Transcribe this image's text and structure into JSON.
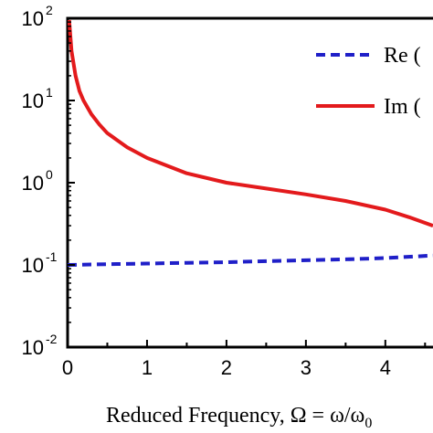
{
  "chart_data": {
    "type": "line",
    "xlabel": "Reduced Frequency, Ω = ω/ω0",
    "ylabel": "",
    "y_scale": "log",
    "xlim": [
      0,
      4.6
    ],
    "ylim": [
      0.01,
      100
    ],
    "x_ticks": [
      "0",
      "1",
      "2",
      "3",
      "4"
    ],
    "y_ticks": [
      {
        "base": "10",
        "exp": "-2"
      },
      {
        "base": "10",
        "exp": "-1"
      },
      {
        "base": "10",
        "exp": "0"
      },
      {
        "base": "10",
        "exp": "1"
      },
      {
        "base": "10",
        "exp": "2"
      }
    ],
    "legend_position": "top-right",
    "series": [
      {
        "name": "Re (",
        "style": "dashed",
        "color": "#1f1fc8",
        "x": [
          0,
          0.5,
          1,
          1.5,
          2,
          2.5,
          3,
          3.5,
          4,
          4.6
        ],
        "y": [
          0.1,
          0.102,
          0.104,
          0.106,
          0.108,
          0.111,
          0.114,
          0.117,
          0.121,
          0.13
        ]
      },
      {
        "name": "Im (",
        "style": "solid",
        "color": "#e31a1c",
        "x": [
          0.02,
          0.05,
          0.1,
          0.15,
          0.2,
          0.3,
          0.4,
          0.5,
          0.75,
          1,
          1.5,
          2,
          2.5,
          3,
          3.5,
          4,
          4.3,
          4.6
        ],
        "y": [
          95,
          40,
          20,
          13,
          10,
          6.8,
          5.1,
          4.0,
          2.7,
          2.0,
          1.3,
          1.0,
          0.85,
          0.72,
          0.6,
          0.47,
          0.38,
          0.3
        ]
      }
    ]
  }
}
